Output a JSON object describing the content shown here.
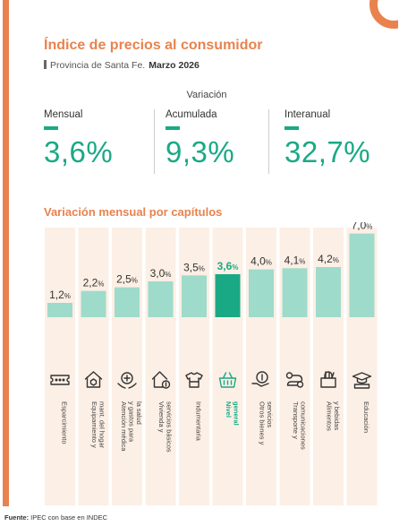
{
  "header": {
    "title": "Índice de precios al consumidor",
    "region": "Provincia de Santa Fe.",
    "period": "Marzo 2026"
  },
  "summary": {
    "title": "Variación",
    "items": [
      {
        "label": "Mensual",
        "value": "3,6%"
      },
      {
        "label": "Acumulada",
        "value": "9,3%"
      },
      {
        "label": "Interanual",
        "value": "32,7%"
      }
    ]
  },
  "colors": {
    "accent": "#e8834f",
    "bar": "#9edbcb",
    "bar_highlight": "#1aa985",
    "text_highlight": "#1aa985",
    "column_bg": "#fcefe5"
  },
  "chart_data": {
    "type": "bar",
    "title": "Variación mensual por capítulos",
    "unit": "%",
    "ylim": [
      0,
      7.5
    ],
    "grid": false,
    "categories": [
      [
        "Esparcimiento"
      ],
      [
        "Equipamiento y",
        "mant. del hogar"
      ],
      [
        "Atención médica",
        "y gastos para",
        "la salud"
      ],
      [
        "Vivienda y",
        "servicios básicos"
      ],
      [
        "Indumentaria"
      ],
      [
        "Nivel",
        "general"
      ],
      [
        "Otros bienes y",
        "servicios"
      ],
      [
        "Transporte y",
        "comunicaciones"
      ],
      [
        "Alimentos",
        "y bebidas"
      ],
      [
        "Educación"
      ]
    ],
    "values": [
      1.2,
      2.2,
      2.5,
      3.0,
      3.5,
      3.6,
      4.0,
      4.1,
      4.2,
      7.0
    ],
    "value_labels": [
      "1,2",
      "2,2",
      "2,5",
      "3,0",
      "3,5",
      "3,6",
      "4,0",
      "4,1",
      "4,2",
      "7,0"
    ],
    "highlight_index": 5,
    "icons": [
      "ticket-icon",
      "house-shield-icon",
      "medical-cross-icon",
      "house-bill-icon",
      "shirt-icon",
      "basket-icon",
      "coin-hand-icon",
      "route-icon",
      "grocery-bag-icon",
      "graduation-cap-icon"
    ]
  },
  "source": {
    "label": "Fuente:",
    "text": " IPEC con base en INDEC"
  }
}
